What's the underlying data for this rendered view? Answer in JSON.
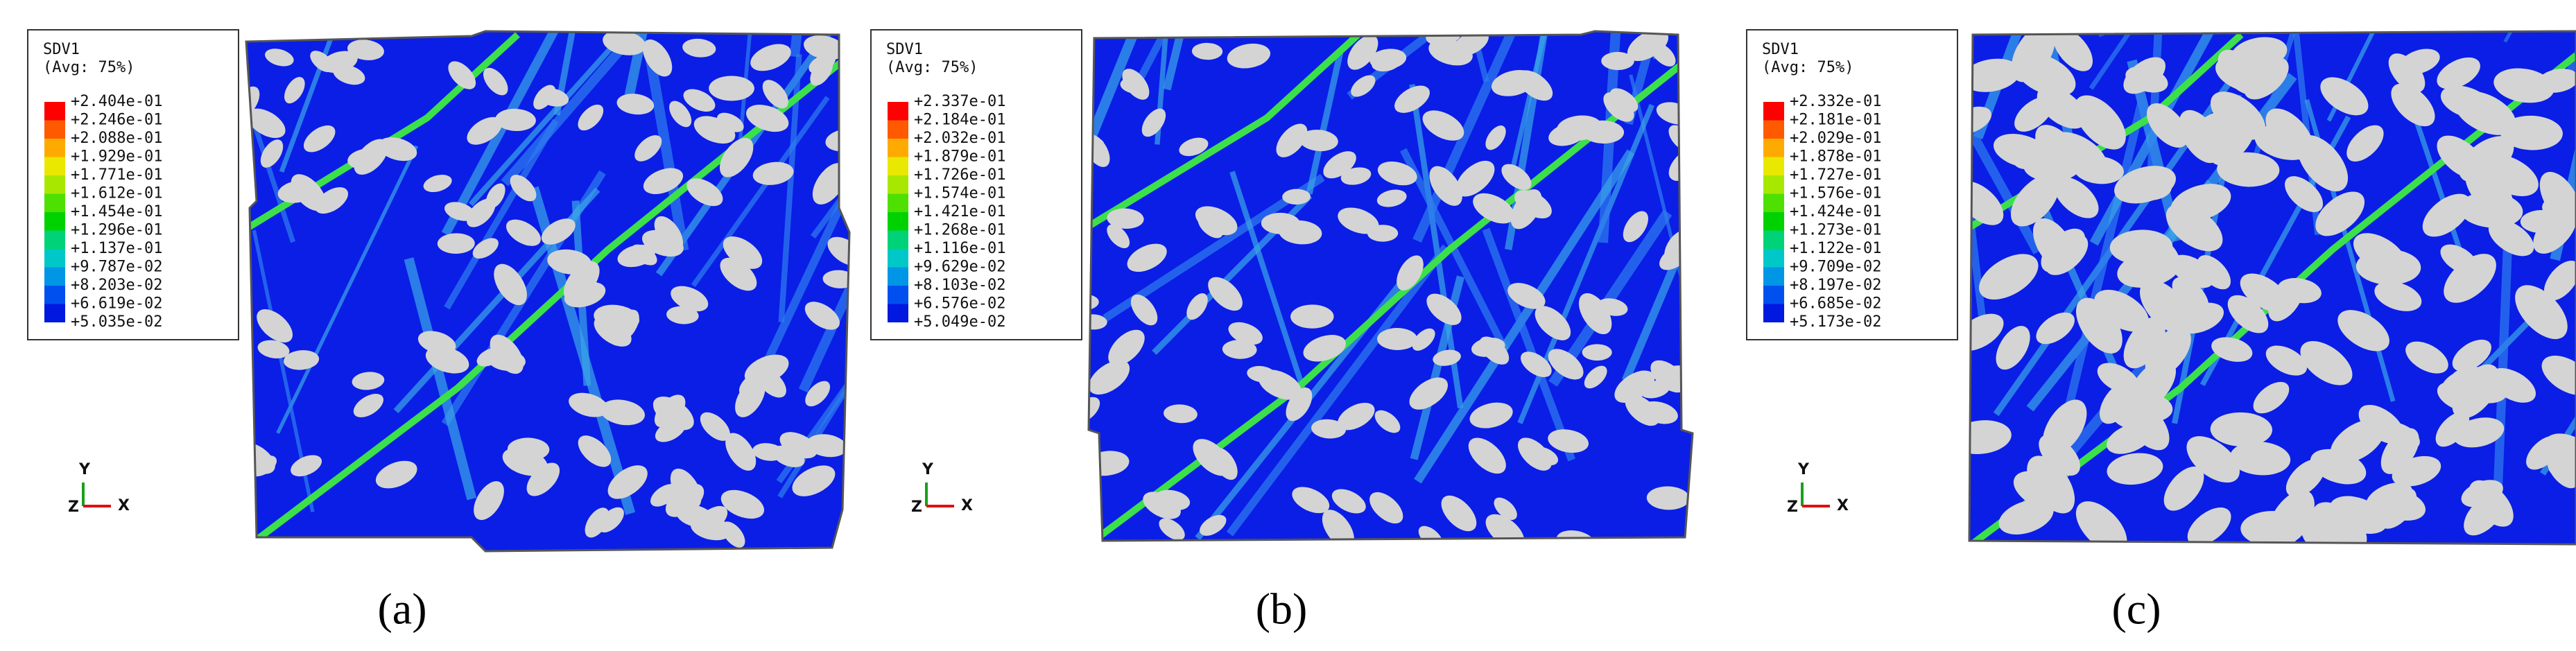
{
  "panels": [
    {
      "legend": {
        "title": "SDV1",
        "subtitle": "(Avg: 75%)",
        "labels": [
          "+2.404e-01",
          "+2.246e-01",
          "+2.088e-01",
          "+1.929e-01",
          "+1.771e-01",
          "+1.612e-01",
          "+1.454e-01",
          "+1.296e-01",
          "+1.137e-01",
          "+9.787e-02",
          "+8.203e-02",
          "+6.619e-02",
          "+5.035e-02"
        ]
      },
      "axes": {
        "y": "Y",
        "x": "X",
        "z": "Z"
      },
      "caption": "(a)"
    },
    {
      "legend": {
        "title": "SDV1",
        "subtitle": "(Avg: 75%)",
        "labels": [
          "+2.337e-01",
          "+2.184e-01",
          "+2.032e-01",
          "+1.879e-01",
          "+1.726e-01",
          "+1.574e-01",
          "+1.421e-01",
          "+1.268e-01",
          "+1.116e-01",
          "+9.629e-02",
          "+8.103e-02",
          "+6.576e-02",
          "+5.049e-02"
        ]
      },
      "axes": {
        "y": "Y",
        "x": "X",
        "z": "Z"
      },
      "caption": "(b)"
    },
    {
      "legend": {
        "title": "SDV1",
        "subtitle": "(Avg: 75%)",
        "labels": [
          "+2.332e-01",
          "+2.181e-01",
          "+2.029e-01",
          "+1.878e-01",
          "+1.727e-01",
          "+1.576e-01",
          "+1.424e-01",
          "+1.273e-01",
          "+1.122e-01",
          "+9.709e-02",
          "+8.197e-02",
          "+6.685e-02",
          "+5.173e-02"
        ]
      },
      "axes": {
        "y": "Y",
        "x": "X",
        "z": "Z"
      },
      "caption": "(c)"
    }
  ]
}
